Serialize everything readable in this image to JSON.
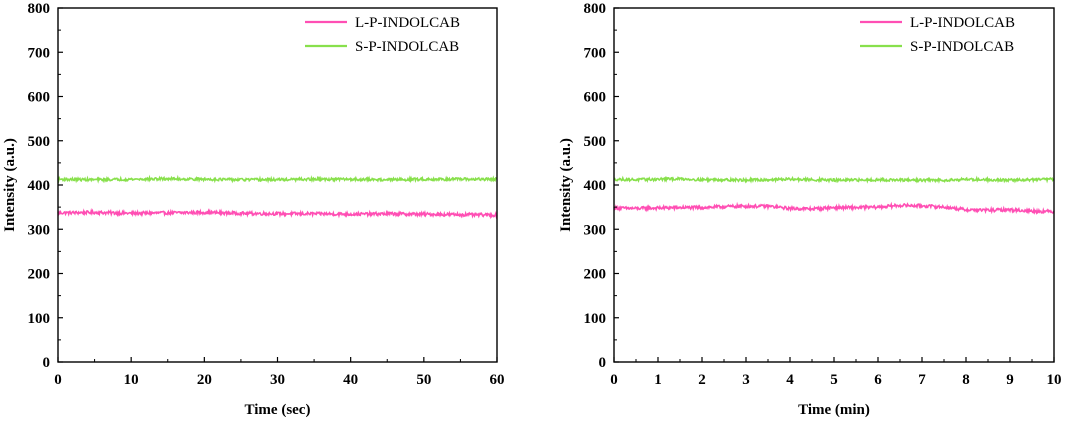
{
  "chart_data": [
    {
      "type": "line",
      "title": "",
      "xlabel": "Time (sec)",
      "ylabel": "Intensity (a.u.)",
      "xlim": [
        0,
        60
      ],
      "ylim": [
        0,
        800
      ],
      "xticks": [
        0,
        10,
        20,
        30,
        40,
        50,
        60
      ],
      "yticks": [
        0,
        100,
        200,
        300,
        400,
        500,
        600,
        700,
        800
      ],
      "grid": false,
      "legend_position": "top-right",
      "series": [
        {
          "name": "L-P-INDOLCAB",
          "color": "#ff4fb4",
          "x": [
            0,
            5,
            10,
            15,
            20,
            25,
            30,
            35,
            40,
            45,
            50,
            55,
            60
          ],
          "y": [
            337,
            338,
            336,
            337,
            338,
            336,
            335,
            335,
            334,
            335,
            334,
            333,
            332
          ]
        },
        {
          "name": "S-P-INDOLCAB",
          "color": "#88e04c",
          "x": [
            0,
            5,
            10,
            15,
            20,
            25,
            30,
            35,
            40,
            45,
            50,
            55,
            60
          ],
          "y": [
            413,
            412,
            413,
            414,
            413,
            412,
            412,
            413,
            413,
            412,
            413,
            413,
            413
          ]
        }
      ]
    },
    {
      "type": "line",
      "title": "",
      "xlabel": "Time (min)",
      "ylabel": "Intensity (a.u.)",
      "xlim": [
        0,
        10
      ],
      "ylim": [
        0,
        800
      ],
      "xticks": [
        0,
        1,
        2,
        3,
        4,
        5,
        6,
        7,
        8,
        9,
        10
      ],
      "yticks": [
        0,
        100,
        200,
        300,
        400,
        500,
        600,
        700,
        800
      ],
      "grid": false,
      "legend_position": "top-right",
      "series": [
        {
          "name": "L-P-INDOLCAB",
          "color": "#ff4fb4",
          "x": [
            0,
            0.5,
            1,
            1.5,
            2,
            2.5,
            3,
            3.5,
            4,
            4.5,
            5,
            5.5,
            6,
            6.5,
            7,
            7.5,
            8,
            8.5,
            9,
            9.5,
            10
          ],
          "y": [
            348,
            347,
            348,
            349,
            349,
            351,
            352,
            352,
            347,
            346,
            349,
            349,
            350,
            354,
            353,
            350,
            344,
            343,
            344,
            341,
            340
          ]
        },
        {
          "name": "S-P-INDOLCAB",
          "color": "#88e04c",
          "x": [
            0,
            0.5,
            1,
            1.5,
            2,
            2.5,
            3,
            3.5,
            4,
            4.5,
            5,
            5.5,
            6,
            6.5,
            7,
            7.5,
            8,
            8.5,
            9,
            9.5,
            10
          ],
          "y": [
            413,
            412,
            413,
            414,
            412,
            412,
            411,
            412,
            413,
            412,
            411,
            411,
            412,
            411,
            411,
            411,
            413,
            412,
            411,
            412,
            413
          ]
        }
      ]
    }
  ]
}
